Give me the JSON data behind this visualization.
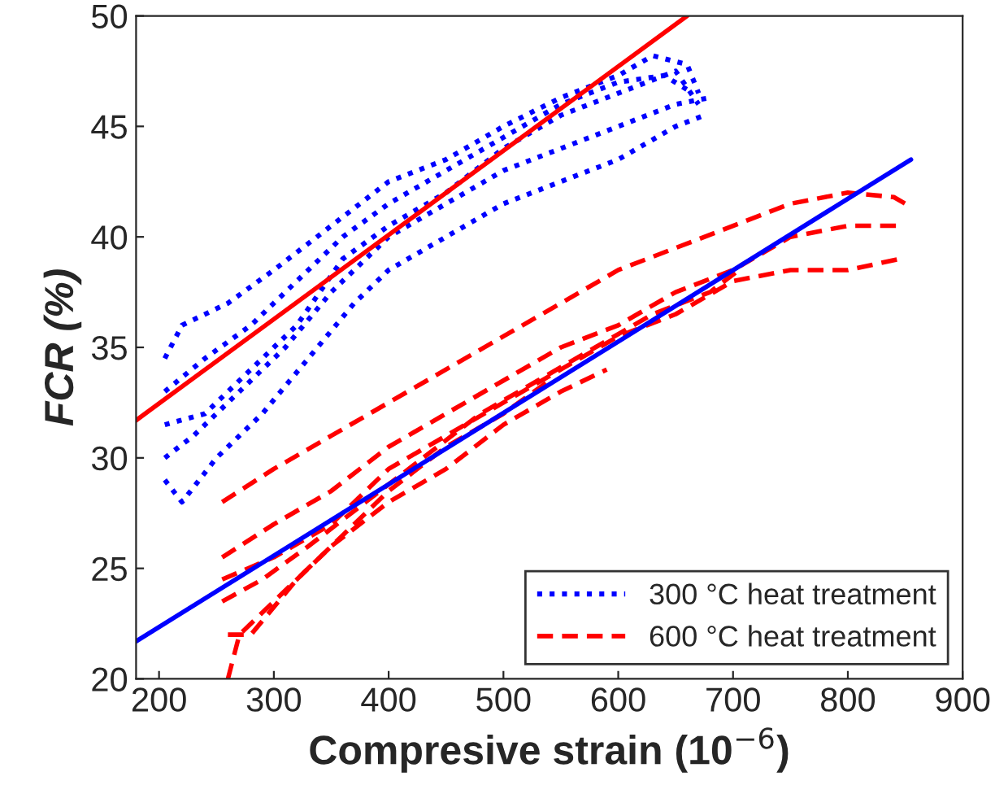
{
  "chart_data": {
    "type": "line",
    "xlabel": "Compresive strain (10$^{−6}$)",
    "ylabel": "FCR (%)",
    "xlim": [
      180,
      900
    ],
    "ylim": [
      20,
      50
    ],
    "xticks": [
      200,
      300,
      400,
      500,
      600,
      700,
      800,
      900
    ],
    "yticks": [
      20,
      25,
      30,
      35,
      40,
      45,
      50
    ],
    "grid": false,
    "legend": "bottom right",
    "series": [
      {
        "name": "300 °C heat treatment",
        "color": "#0000ff",
        "line_style": "dotted",
        "x": [
          205,
          220,
          260,
          300,
          350,
          400,
          450,
          500,
          550,
          600,
          630,
          660,
          670
        ],
        "values": [
          34.5,
          36,
          37,
          38.5,
          40.5,
          42.5,
          43.5,
          45,
          46.3,
          47.3,
          48.2,
          47.8,
          46.5
        ]
      },
      {
        "color": "#0000ff",
        "line_style": "dotted",
        "x": [
          205,
          240,
          280,
          320,
          360,
          400,
          450,
          500,
          550,
          600,
          640,
          665
        ],
        "values": [
          33,
          34.5,
          36,
          38,
          40,
          41.5,
          43,
          44.5,
          46,
          47,
          47.3,
          46.5
        ]
      },
      {
        "color": "#0000ff",
        "line_style": "dotted",
        "x": [
          205,
          240,
          280,
          320,
          360,
          400,
          450,
          500,
          550,
          600,
          650,
          670
        ],
        "values": [
          31.5,
          32,
          34,
          36,
          39,
          40.5,
          42,
          44,
          45.5,
          46.5,
          47.5,
          46
        ]
      },
      {
        "color": "#0000ff",
        "line_style": "dotted",
        "x": [
          205,
          230,
          270,
          310,
          350,
          400,
          450,
          500,
          550,
          600,
          650,
          680
        ],
        "values": [
          30,
          31,
          33,
          35,
          37.5,
          40,
          41.5,
          43,
          44,
          45,
          46,
          46.3
        ]
      },
      {
        "color": "#0000ff",
        "line_style": "dotted",
        "x": [
          205,
          220,
          250,
          290,
          330,
          370,
          400,
          450,
          500,
          550,
          600,
          650,
          675
        ],
        "values": [
          29,
          28,
          30,
          32,
          34.5,
          37,
          38.5,
          40,
          41.5,
          42.5,
          43.5,
          45,
          45.5
        ]
      },
      {
        "name": "600 °C heat treatment",
        "color": "#ff0000",
        "line_style": "dashed",
        "x": [
          255,
          300,
          350,
          400,
          450,
          500,
          550,
          600,
          650,
          700,
          750,
          800,
          840,
          850
        ],
        "values": [
          28,
          29.5,
          31,
          32.5,
          34,
          35.5,
          37,
          38.5,
          39.5,
          40.5,
          41.5,
          42,
          41.8,
          41.5
        ]
      },
      {
        "color": "#ff0000",
        "line_style": "dashed",
        "x": [
          255,
          300,
          350,
          400,
          450,
          500,
          550,
          600,
          650,
          700,
          750,
          800,
          845
        ],
        "values": [
          25.5,
          27,
          28.5,
          30.5,
          32,
          33.5,
          35,
          36,
          37.5,
          38.5,
          40,
          40.5,
          40.5
        ]
      },
      {
        "color": "#ff0000",
        "line_style": "dashed",
        "x": [
          255,
          300,
          350,
          400,
          450,
          500,
          550,
          600,
          650,
          700,
          750,
          800,
          845
        ],
        "values": [
          24.5,
          25.5,
          27,
          29.5,
          31,
          32.5,
          34,
          35.5,
          36.5,
          38,
          38.5,
          38.5,
          39
        ]
      },
      {
        "color": "#ff0000",
        "line_style": "dashed",
        "x": [
          255,
          290,
          330,
          380,
          430,
          480,
          530,
          580,
          630,
          680,
          705
        ],
        "values": [
          23.5,
          24.5,
          26,
          28,
          30,
          32,
          33.5,
          35,
          36.5,
          37.5,
          38.5
        ]
      },
      {
        "color": "#ff0000",
        "line_style": "dashed",
        "x": [
          260,
          270,
          300,
          350,
          400,
          450,
          500,
          550,
          590
        ],
        "values": [
          20,
          22,
          23.5,
          26,
          28,
          29.5,
          31.5,
          33,
          34
        ]
      },
      {
        "color": "#ff0000",
        "line_style": "dashed",
        "x": [
          260,
          280,
          320,
          360,
          400,
          450,
          500,
          540
        ],
        "values": [
          22,
          22,
          24.5,
          26.5,
          28.5,
          30.5,
          32,
          33.5
        ]
      },
      {
        "color": "#ff0000",
        "line_style": "solid",
        "x": [
          180,
          660
        ],
        "values": [
          31.7,
          50
        ]
      },
      {
        "color": "#0000ff",
        "line_style": "solid",
        "x": [
          180,
          855
        ],
        "values": [
          21.7,
          43.5
        ]
      }
    ]
  }
}
